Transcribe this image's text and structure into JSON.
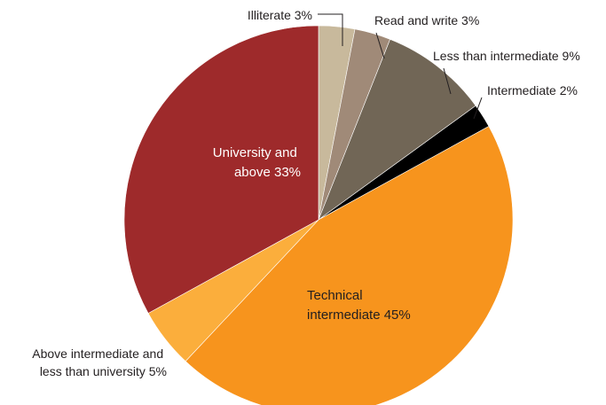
{
  "chart_data": {
    "type": "pie",
    "start_angle_deg": 0,
    "direction": "clockwise",
    "slices": [
      {
        "label": "Illiterate 3%",
        "value": 3,
        "color": "#c8b99c"
      },
      {
        "label": "Read and write 3%",
        "value": 3,
        "color": "#a08a78"
      },
      {
        "label": "Less than intermediate 9%",
        "value": 9,
        "color": "#716656"
      },
      {
        "label": "Intermediate 2%",
        "value": 2,
        "color": "#000000"
      },
      {
        "label": "Technical intermediate 45%",
        "value": 45,
        "color": "#f7941d"
      },
      {
        "label": "Above intermediate and less than university 5%",
        "value": 5,
        "color": "#fbae3c"
      },
      {
        "label": "University and above 33%",
        "value": 33,
        "color": "#9e2a2b"
      }
    ],
    "label_lines": [
      [
        "Illiterate 3%"
      ],
      [
        "Read and write 3%"
      ],
      [
        "Less than intermediate 9%"
      ],
      [
        "Intermediate 2%"
      ],
      [
        "Technical",
        "intermediate 45%"
      ],
      [
        "Above intermediate and",
        "less than university 5%"
      ],
      [
        "University and",
        "above 33%"
      ]
    ]
  }
}
